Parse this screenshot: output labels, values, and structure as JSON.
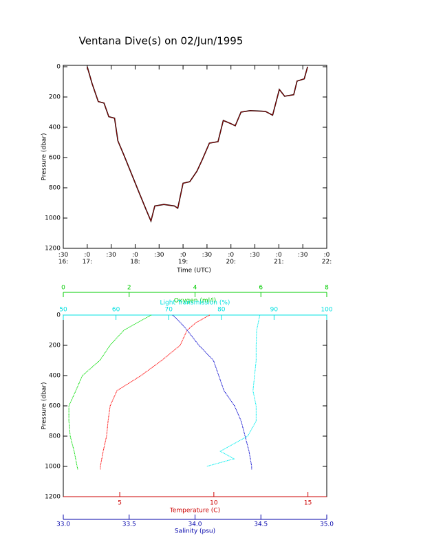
{
  "chart_data": [
    {
      "type": "line",
      "title": "Ventana Dive(s) on 02/Jun/1995",
      "x_label": "Time (UTC)",
      "y_label": "Pressure (dbar)",
      "xlim": [
        16.5,
        22
      ],
      "y_inverted": true,
      "ylim": [
        0,
        1200
      ],
      "xticks": [
        {
          "value": 16.5,
          "label": ":30\n16:"
        },
        {
          "value": 17,
          "label": ":0\n17:"
        },
        {
          "value": 17.5,
          "label": ":30"
        },
        {
          "value": 18,
          "label": ":0\n18:"
        },
        {
          "value": 18.5,
          "label": ":30"
        },
        {
          "value": 19,
          "label": ":0\n19:"
        },
        {
          "value": 19.5,
          "label": ":30"
        },
        {
          "value": 20,
          "label": ":0\n20:"
        },
        {
          "value": 20.5,
          "label": ":30"
        },
        {
          "value": 21,
          "label": ":0\n21:"
        },
        {
          "value": 21.5,
          "label": ":30"
        },
        {
          "value": 22,
          "label": ":0\n22:"
        }
      ],
      "yticks": [
        0,
        200,
        400,
        600,
        800,
        1000,
        1200
      ],
      "x": [
        17.0,
        17.1,
        17.23,
        17.35,
        17.45,
        17.57,
        17.64,
        17.76,
        17.94,
        18.08,
        18.23,
        18.33,
        18.41,
        18.6,
        18.82,
        18.89,
        19.0,
        19.14,
        19.29,
        19.4,
        19.55,
        19.73,
        19.84,
        19.99,
        20.09,
        20.21,
        20.4,
        20.72,
        20.87,
        21.01,
        21.12,
        21.31,
        21.38,
        21.53,
        21.6
      ],
      "series": [
        {
          "color": "#b00000",
          "values": [
            0,
            110,
            230,
            240,
            330,
            340,
            490,
            580,
            720,
            830,
            945,
            1020,
            920,
            910,
            920,
            935,
            770,
            760,
            690,
            615,
            505,
            495,
            355,
            375,
            390,
            300,
            290,
            295,
            320,
            150,
            195,
            185,
            95,
            80,
            0
          ]
        }
      ]
    },
    {
      "type": "profile",
      "y_label": "Pressure (dbar)",
      "y_inverted": true,
      "ylim": [
        0,
        1200
      ],
      "yticks": [
        0,
        200,
        400,
        600,
        800,
        1000,
        1200
      ],
      "x_axes": [
        {
          "label": "Temperature (C)",
          "color": "#cc0000",
          "position": "bottom",
          "lim": [
            2,
            16
          ],
          "ticks": [
            5,
            10,
            15
          ]
        },
        {
          "label": "Salinity (psu)",
          "color": "#0000aa",
          "position": "bottom2",
          "lim": [
            33,
            35
          ],
          "ticks": [
            {
              "value": 33,
              "label": "33.0"
            },
            {
              "value": 33.5,
              "label": "33.5"
            },
            {
              "value": 34,
              "label": "34.0"
            },
            {
              "value": 34.5,
              "label": "34.5"
            },
            {
              "value": 35,
              "label": "35.0"
            }
          ]
        },
        {
          "label": "Oxygen (ml/l)",
          "color": "#00cc00",
          "position": "top2",
          "lim": [
            0,
            8
          ],
          "ticks": [
            0,
            2,
            4,
            6,
            8
          ]
        },
        {
          "label": "Light Transmission (%)",
          "color": "#00e0e0",
          "position": "top",
          "lim": [
            50,
            100
          ],
          "ticks": [
            50,
            60,
            70,
            80,
            90,
            100
          ]
        }
      ],
      "series": [
        {
          "axis": 0,
          "color": "#ff0000",
          "x": [
            9.78,
            9.05,
            8.58,
            8.21,
            7.23,
            6.13,
            4.85,
            4.49,
            4.38,
            4.3,
            4.12,
            3.97,
            3.97
          ],
          "y": [
            0,
            50,
            100,
            200,
            300,
            400,
            500,
            600,
            700,
            800,
            900,
            1000,
            1020
          ]
        },
        {
          "axis": 1,
          "color": "#0000cc",
          "x": [
            33.83,
            33.89,
            33.94,
            34.03,
            34.14,
            34.18,
            34.22,
            34.3,
            34.35,
            34.38,
            34.41,
            34.43,
            34.43
          ],
          "y": [
            0,
            50,
            100,
            200,
            300,
            400,
            500,
            600,
            700,
            800,
            900,
            1000,
            1020
          ]
        },
        {
          "axis": 2,
          "color": "#00dd00",
          "x": [
            2.67,
            2.25,
            1.84,
            1.42,
            1.11,
            0.58,
            0.38,
            0.17,
            0.17,
            0.21,
            0.33,
            0.42,
            0.44
          ],
          "y": [
            0,
            50,
            100,
            200,
            300,
            400,
            500,
            600,
            700,
            800,
            900,
            1000,
            1020
          ]
        },
        {
          "axis": 3,
          "color": "#00eeee",
          "x": [
            87.3,
            86.7,
            86.6,
            86.6,
            86.3,
            86.0,
            86.6,
            86.6,
            85.0,
            79.8,
            82.4,
            77.2
          ],
          "y": [
            0,
            100,
            200,
            300,
            400,
            500,
            600,
            700,
            800,
            900,
            950,
            1000
          ]
        }
      ]
    }
  ]
}
